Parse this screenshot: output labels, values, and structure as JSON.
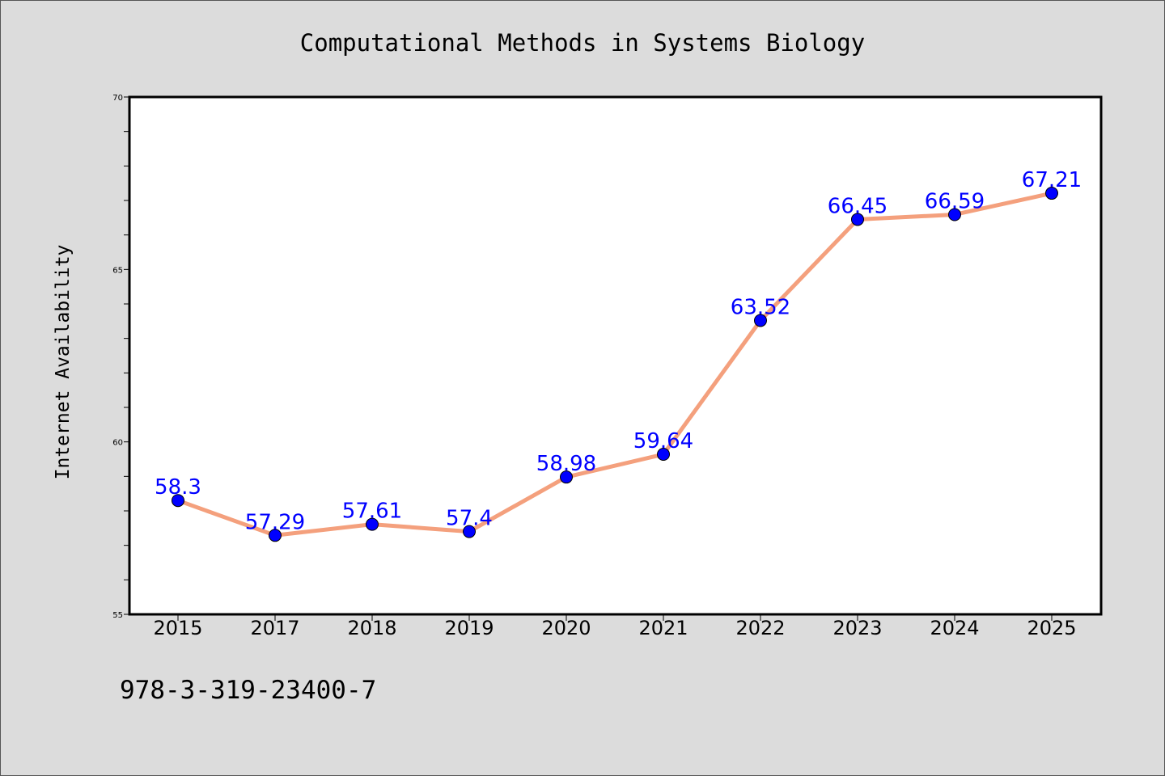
{
  "chart_data": {
    "type": "line",
    "title": "Computational Methods in Systems Biology",
    "ylabel": "Internet Availability",
    "xlabel": "",
    "categories": [
      "2015",
      "2017",
      "2018",
      "2019",
      "2020",
      "2021",
      "2022",
      "2023",
      "2024",
      "2025"
    ],
    "values": [
      58.3,
      57.29,
      57.61,
      57.4,
      58.98,
      59.64,
      63.52,
      66.45,
      66.59,
      67.21
    ],
    "data_labels": [
      "58.3",
      "57.29",
      "57.61",
      "57.4",
      "58.98",
      "59.64",
      "63.52",
      "66.45",
      "66.59",
      "67.21"
    ],
    "ylim": [
      55,
      70
    ],
    "yticks": [
      {
        "value": 55,
        "label": "55"
      },
      {
        "value": 60,
        "label": "60"
      },
      {
        "value": 65,
        "label": "65"
      },
      {
        "value": 70,
        "label": "70"
      }
    ],
    "y_minor_step": 1,
    "grid": false,
    "legend": "none",
    "line_color": "#f4a07d",
    "marker_color": "#0000ff",
    "label_color": "#0000ff"
  },
  "footnote": "978-3-319-23400-7"
}
